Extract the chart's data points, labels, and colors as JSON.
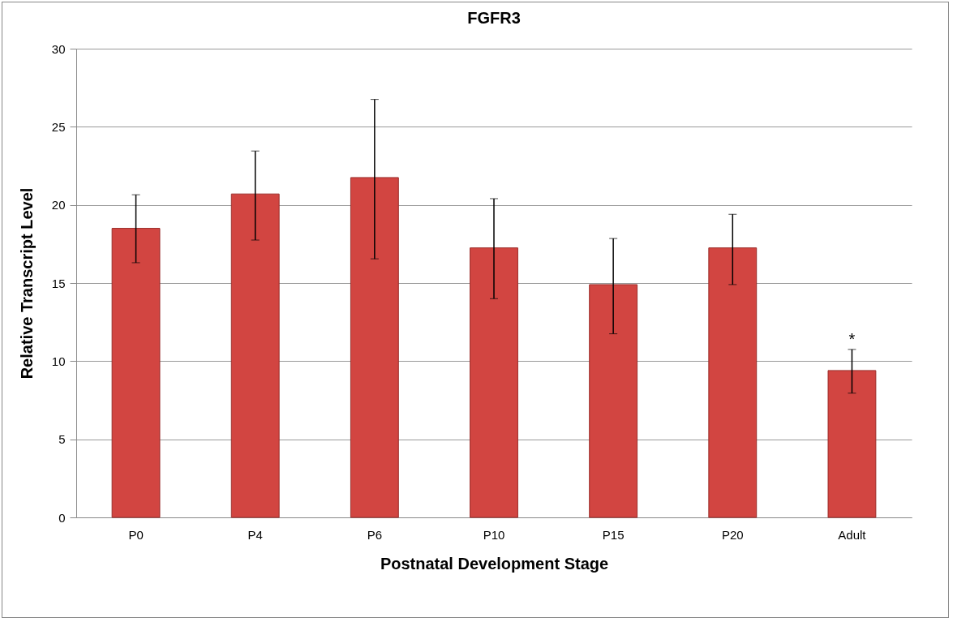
{
  "chart_data": {
    "type": "bar",
    "title": "FGFR3",
    "xlabel": "Postnatal Development Stage",
    "ylabel": "Relative Transcript Level",
    "categories": [
      "P0",
      "P4",
      "P6",
      "P10",
      "P15",
      "P20",
      "Adult"
    ],
    "values": [
      18.5,
      20.7,
      21.75,
      17.25,
      14.9,
      17.25,
      9.4
    ],
    "errors": [
      [
        16.3,
        20.65
      ],
      [
        17.75,
        23.45
      ],
      [
        16.55,
        26.75
      ],
      [
        14.0,
        20.4
      ],
      [
        11.75,
        17.85
      ],
      [
        14.9,
        19.4
      ],
      [
        7.95,
        10.75
      ]
    ],
    "color": "#d24541",
    "ylim": [
      0,
      30
    ],
    "yticks": [
      0,
      5,
      10,
      15,
      20,
      25,
      30
    ],
    "grid": "y",
    "annotations": [
      "*"
    ]
  }
}
